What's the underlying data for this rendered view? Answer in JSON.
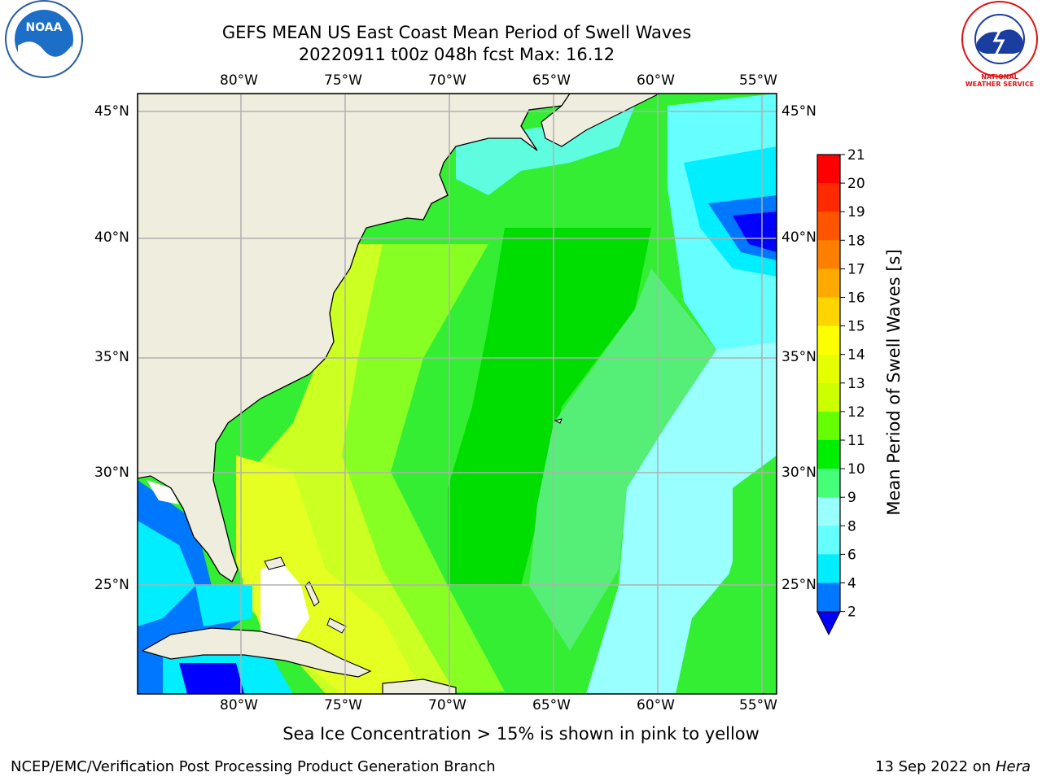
{
  "title_line1": "GEFS MEAN US East Coast Mean Period of Swell Waves",
  "title_line2": "20220911 t00z 048h fcst   Max: 16.12",
  "subtitle": "Sea Ice Concentration > 15% is shown in pink to yellow",
  "footer_left": "NCEP/EMC/Verification Post Processing Product Generation Branch",
  "footer_date": "13 Sep 2022 on ",
  "footer_machine": "Hera",
  "logos": {
    "left": "NOAA",
    "right": "NATIONAL WEATHER SERVICE"
  },
  "map": {
    "lon_labels": [
      "80°W",
      "75°W",
      "70°W",
      "65°W",
      "60°W",
      "55°W"
    ],
    "lat_labels": [
      "45°N",
      "40°N",
      "35°N",
      "30°N",
      "25°N"
    ],
    "land_color": "#efedde",
    "grid_color": "#b0b0b0"
  },
  "colorbar": {
    "label": "Mean Period of Swell Waves [s]",
    "ticks": [
      "21",
      "20",
      "19",
      "18",
      "17",
      "16",
      "15",
      "14",
      "13",
      "12",
      "11",
      "10",
      "9",
      "8",
      "6",
      "4",
      "2"
    ],
    "colors": [
      "#ff0000",
      "#ff2a00",
      "#ff5500",
      "#ff8000",
      "#ffaa00",
      "#ffd500",
      "#ffff00",
      "#e6ff00",
      "#ccff00",
      "#66ff00",
      "#00ee00",
      "#44ff77",
      "#99ffff",
      "#66ffff",
      "#00eeff",
      "#0077ff",
      "#0000ff"
    ]
  }
}
